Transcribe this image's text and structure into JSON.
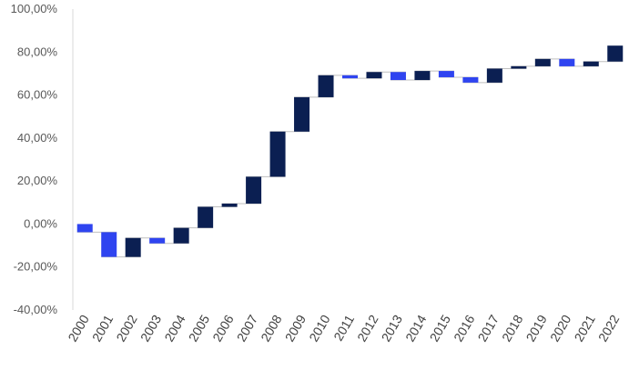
{
  "chart_data": {
    "type": "bar",
    "subtype": "waterfall",
    "title": "",
    "xlabel": "",
    "ylabel": "",
    "ylim": [
      -40,
      100
    ],
    "y_ticks": [
      "-40,00%",
      "-20,00%",
      "0,00%",
      "20,00%",
      "40,00%",
      "60,00%",
      "80,00%",
      "100,00%"
    ],
    "y_tick_values": [
      -40,
      -20,
      0,
      20,
      40,
      60,
      80,
      100
    ],
    "grid": false,
    "legend": "none",
    "categories": [
      "2000",
      "2001",
      "2002",
      "2003",
      "2004",
      "2005",
      "2006",
      "2007",
      "2008",
      "2009",
      "2010",
      "2011",
      "2012",
      "2013",
      "2014",
      "2015",
      "2016",
      "2017",
      "2018",
      "2019",
      "2020",
      "2021",
      "2022"
    ],
    "bars": [
      {
        "from": 0.0,
        "to": -3.8
      },
      {
        "from": -3.8,
        "to": -15.3
      },
      {
        "from": -15.3,
        "to": -6.5
      },
      {
        "from": -6.5,
        "to": -9.0
      },
      {
        "from": -9.0,
        "to": -1.8
      },
      {
        "from": -1.8,
        "to": 8.0
      },
      {
        "from": 8.0,
        "to": 9.5
      },
      {
        "from": 9.5,
        "to": 22.0
      },
      {
        "from": 22.0,
        "to": 43.0
      },
      {
        "from": 43.0,
        "to": 59.0
      },
      {
        "from": 59.0,
        "to": 69.2
      },
      {
        "from": 69.2,
        "to": 67.8
      },
      {
        "from": 67.8,
        "to": 70.7
      },
      {
        "from": 70.7,
        "to": 67.0
      },
      {
        "from": 67.0,
        "to": 71.2
      },
      {
        "from": 71.2,
        "to": 68.3
      },
      {
        "from": 68.3,
        "to": 65.8
      },
      {
        "from": 65.8,
        "to": 72.3
      },
      {
        "from": 72.3,
        "to": 73.4
      },
      {
        "from": 73.4,
        "to": 76.8
      },
      {
        "from": 76.8,
        "to": 73.4
      },
      {
        "from": 73.4,
        "to": 75.6
      },
      {
        "from": 75.6,
        "to": 83.0
      }
    ],
    "colors": {
      "increase": "#0b1f52",
      "decrease": "#2f44f0",
      "connector": "#bfbfbf",
      "axis": "#d9d9d9"
    }
  }
}
